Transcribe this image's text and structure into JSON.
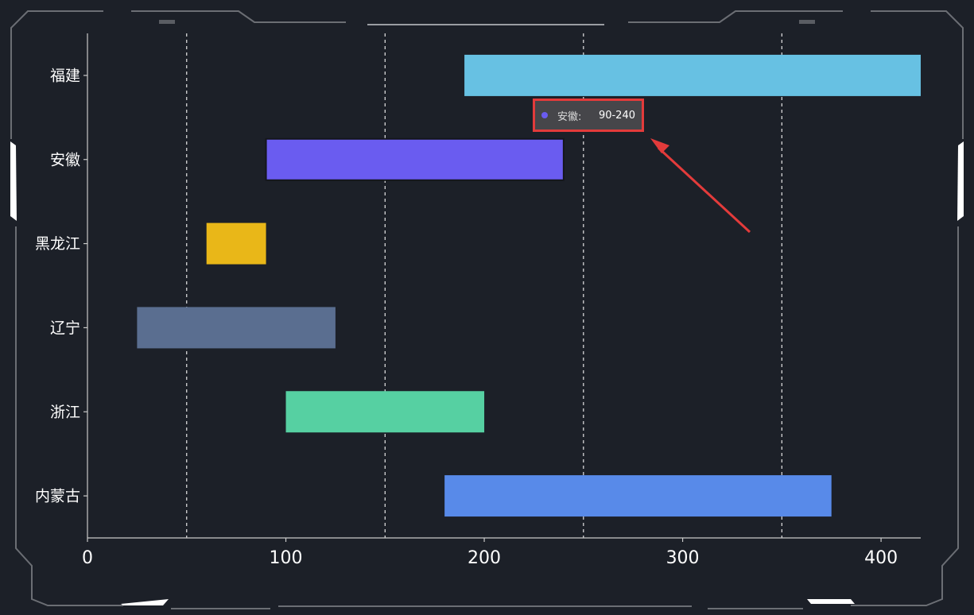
{
  "chart_data": {
    "type": "bar",
    "orientation": "horizontal-range",
    "categories": [
      "福建",
      "安徽",
      "黑龙江",
      "辽宁",
      "浙江",
      "内蒙古"
    ],
    "ranges": [
      [
        190,
        420
      ],
      [
        90,
        240
      ],
      [
        60,
        90
      ],
      [
        25,
        125
      ],
      [
        100,
        200
      ],
      [
        180,
        375
      ]
    ],
    "colors": [
      "#67c1e3",
      "#6a5cf0",
      "#e9b718",
      "#5a6e90",
      "#56d0a2",
      "#588ae9"
    ],
    "x_ticks": [
      0,
      100,
      200,
      300,
      400
    ],
    "xlim": [
      0,
      420
    ],
    "grid": "dashed vertical lines at 50, 150, 250, 350"
  },
  "tooltip": {
    "label": "安徽:",
    "value": "90-240",
    "dot_color": "#6a5cf0"
  },
  "colors": {
    "background": "#1c2028",
    "arrow": "#e33b3b"
  }
}
